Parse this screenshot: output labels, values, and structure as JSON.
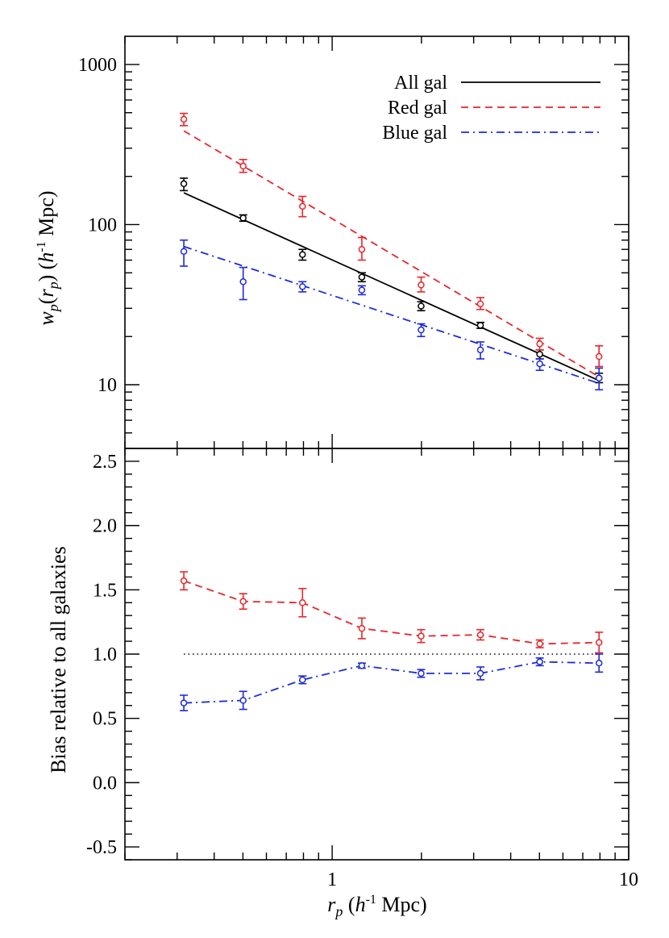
{
  "chart_data": [
    {
      "type": "scatter",
      "panel": "top",
      "xscale": "log",
      "yscale": "log",
      "xlim": [
        0.2,
        10
      ],
      "ylim": [
        4,
        1500
      ],
      "ylabel": {
        "base": "w",
        "sub": "p",
        "mid1": "(",
        "base2": "r",
        "sub2": "p",
        "mid2": ") (",
        "unit_italic": "h",
        "sup": "-1",
        "unit_rest": " Mpc)"
      },
      "xticks": [],
      "yticks": [
        {
          "value": 10,
          "label": "10"
        },
        {
          "value": 100,
          "label": "100"
        },
        {
          "value": 1000,
          "label": "1000"
        }
      ],
      "legend": {
        "placement": "top-right",
        "entries": [
          {
            "label": "All gal",
            "color": "#000000",
            "dash": "solid"
          },
          {
            "label": "Red gal",
            "color": "#e8262b",
            "dash": "dashed"
          },
          {
            "label": "Blue gal",
            "color": "#1f2bd6",
            "dash": "dashdot"
          }
        ]
      },
      "x": [
        0.316,
        0.501,
        0.794,
        1.259,
        1.995,
        3.162,
        5.012,
        7.943
      ],
      "series": [
        {
          "name": "All gal",
          "color": "#000000",
          "dash": "solid",
          "values": [
            180,
            110,
            65,
            47,
            31,
            23.5,
            15.5,
            11
          ],
          "err_lo": [
            163,
            105,
            60,
            44,
            29,
            22.5,
            14.5,
            10.3
          ],
          "err_hi": [
            195,
            115,
            70,
            50,
            33,
            24.5,
            16.5,
            11.8
          ],
          "fit": [
            [
              0.316,
              158
            ],
            [
              7.943,
              10.6
            ]
          ]
        },
        {
          "name": "Red gal",
          "color": "#e8262b",
          "dash": "dashed",
          "values": [
            455,
            232,
            130,
            70,
            42,
            32,
            18,
            15
          ],
          "err_lo": [
            415,
            212,
            112,
            60,
            38,
            29.5,
            16.5,
            13
          ],
          "err_hi": [
            495,
            255,
            150,
            83,
            47,
            35,
            19.5,
            17.5
          ],
          "fit": [
            [
              0.316,
              385
            ],
            [
              7.943,
              11.2
            ]
          ]
        },
        {
          "name": "Blue gal",
          "color": "#1f2bd6",
          "dash": "dashdot",
          "values": [
            68,
            44,
            41,
            39,
            22,
            16.5,
            13.5,
            11
          ],
          "err_lo": [
            55,
            34,
            38,
            36.5,
            20,
            14.5,
            12.3,
            9.3
          ],
          "err_hi": [
            80,
            54,
            44,
            41.5,
            24,
            18.5,
            14.5,
            12.7
          ],
          "fit": [
            [
              0.316,
              73
            ],
            [
              7.943,
              10.2
            ]
          ]
        }
      ]
    },
    {
      "type": "line",
      "panel": "bottom",
      "xscale": "log",
      "xlim": [
        0.2,
        10
      ],
      "ylim": [
        -0.6,
        2.6
      ],
      "xlabel": {
        "base": "r",
        "sub": "p",
        "paren_open": " (",
        "unit_italic": "h",
        "sup": "-1",
        "unit_rest": " Mpc)"
      },
      "ylabel": "Bias relative to all galaxies",
      "xticks": [
        {
          "value": 1,
          "label": "1"
        },
        {
          "value": 10,
          "label": "10"
        }
      ],
      "yticks": [
        {
          "value": -0.5,
          "label": "-0.5"
        },
        {
          "value": 0.0,
          "label": "0.0"
        },
        {
          "value": 0.5,
          "label": "0.5"
        },
        {
          "value": 1.0,
          "label": "1.0"
        },
        {
          "value": 1.5,
          "label": "1.5"
        },
        {
          "value": 2.0,
          "label": "2.0"
        },
        {
          "value": 2.5,
          "label": "2.5"
        }
      ],
      "reference_line": {
        "y": 1.0,
        "x": [
          0.316,
          7.943
        ],
        "dash": "dotted",
        "color": "#000000"
      },
      "x": [
        0.316,
        0.501,
        0.794,
        1.259,
        1.995,
        3.162,
        5.012,
        7.943
      ],
      "series": [
        {
          "color": "#e8262b",
          "dash": "dashed",
          "values": [
            1.57,
            1.41,
            1.4,
            1.2,
            1.14,
            1.15,
            1.08,
            1.09
          ],
          "err_lo": [
            1.5,
            1.35,
            1.29,
            1.12,
            1.09,
            1.11,
            1.05,
            1.01
          ],
          "err_hi": [
            1.64,
            1.47,
            1.51,
            1.28,
            1.19,
            1.19,
            1.11,
            1.17
          ]
        },
        {
          "color": "#1f2bd6",
          "dash": "dashdot",
          "values": [
            0.62,
            0.64,
            0.8,
            0.91,
            0.85,
            0.85,
            0.94,
            0.93
          ],
          "err_lo": [
            0.56,
            0.57,
            0.77,
            0.89,
            0.82,
            0.8,
            0.91,
            0.86
          ],
          "err_hi": [
            0.68,
            0.71,
            0.83,
            0.93,
            0.88,
            0.9,
            0.97,
            1.0
          ]
        }
      ]
    }
  ]
}
